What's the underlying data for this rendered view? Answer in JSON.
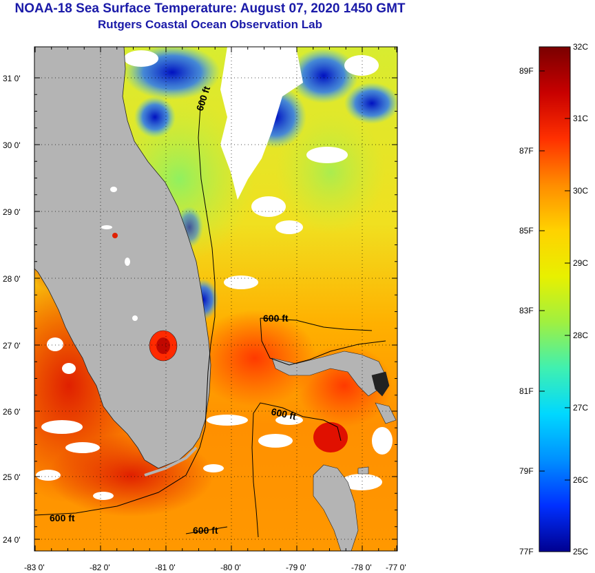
{
  "title": "NOAA-18 Sea Surface Temperature:  August 07, 2020 1450 GMT",
  "subtitle": "Rutgers Coastal Ocean Observation Lab",
  "lon_ticks": [
    "-83 0'",
    "-82 0'",
    "-81 0'",
    "-80 0'",
    "-79 0'",
    "-78 0'",
    "-77 0'"
  ],
  "lat_ticks": [
    "31 0'",
    "30 0'",
    "29 0'",
    "28 0'",
    "27 0'",
    "26 0'",
    "25 0'",
    "24 0'"
  ],
  "contour_labels": [
    "600 ft",
    "600 ft",
    "600 ft",
    "600 ft",
    "600 ft"
  ],
  "colorbar": {
    "celsius": [
      "32C",
      "31C",
      "30C",
      "29C",
      "28C",
      "27C",
      "26C",
      "25C"
    ],
    "fahrenheit": [
      "89F",
      "87F",
      "85F",
      "83F",
      "81F",
      "79F",
      "77F"
    ],
    "colors": [
      "#7a0000",
      "#c80000",
      "#ff3000",
      "#ff8c00",
      "#ffd200",
      "#e8f000",
      "#a0f040",
      "#40f0b0",
      "#00d8ff",
      "#0090ff",
      "#0030ff",
      "#000090"
    ]
  },
  "colors": {
    "land": "#b4b4b4",
    "title": "#1a1aa8"
  }
}
